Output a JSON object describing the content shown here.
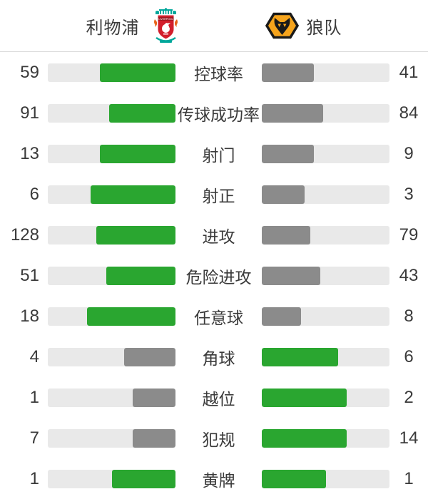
{
  "header": {
    "home": {
      "name": "利物浦",
      "logo_icon": "liverpool-crest-icon"
    },
    "away": {
      "name": "狼队",
      "logo_icon": "wolves-crest-icon"
    }
  },
  "stats": [
    {
      "label": "控球率",
      "home": 59,
      "away": 41
    },
    {
      "label": "传球成功率",
      "home": 91,
      "away": 84
    },
    {
      "label": "射门",
      "home": 13,
      "away": 9
    },
    {
      "label": "射正",
      "home": 6,
      "away": 3
    },
    {
      "label": "进攻",
      "home": 128,
      "away": 79
    },
    {
      "label": "危险进攻",
      "home": 51,
      "away": 43
    },
    {
      "label": "任意球",
      "home": 18,
      "away": 8
    },
    {
      "label": "角球",
      "home": 4,
      "away": 6
    },
    {
      "label": "越位",
      "home": 1,
      "away": 2
    },
    {
      "label": "犯规",
      "home": 7,
      "away": 14
    },
    {
      "label": "黄牌",
      "home": 1,
      "away": 1
    }
  ],
  "colors": {
    "lead_bar": "#2aa630",
    "trail_bar": "#8b8b8b",
    "bar_track": "#e9e9e9",
    "text": "#3a3a3a",
    "divider": "#d9d9d9",
    "liverpool_red": "#d21e2b",
    "liverpool_teal": "#00a79b",
    "liverpool_flame_orange": "#e8641b",
    "wolves_gold": "#f6a41c",
    "wolves_black": "#1a1a1a"
  }
}
